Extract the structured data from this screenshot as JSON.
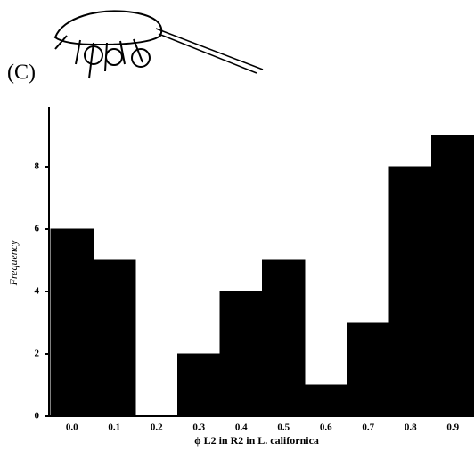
{
  "chart_data": {
    "type": "bar",
    "panel_label": "(C)",
    "ylabel": "Frequency",
    "xlabel": "ϕ L2 in R2 in L. californica",
    "categories": [
      "0.0",
      "0.1",
      "0.2",
      "0.3",
      "0.4",
      "0.5",
      "0.6",
      "0.7",
      "0.8",
      "0.9"
    ],
    "values": [
      6,
      5,
      0,
      2,
      4,
      5,
      1,
      3,
      8,
      9
    ],
    "color": "#000000",
    "ylim": [
      0,
      9.8
    ],
    "yticks": [
      0,
      2,
      4,
      6,
      8
    ]
  }
}
